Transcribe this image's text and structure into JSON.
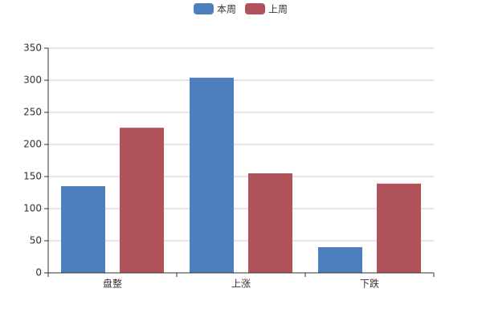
{
  "chart_data": {
    "type": "bar",
    "categories": [
      "盘整",
      "上涨",
      "下跌"
    ],
    "series": [
      {
        "name": "本周",
        "color": "#4d7fbc",
        "values": [
          135,
          304,
          40
        ]
      },
      {
        "name": "上周",
        "color": "#b0525a",
        "values": [
          226,
          155,
          139
        ]
      }
    ],
    "ylim": [
      0,
      350
    ],
    "yticks": [
      0,
      50,
      100,
      150,
      200,
      250,
      300,
      350
    ],
    "grid": true,
    "legend": "top"
  }
}
